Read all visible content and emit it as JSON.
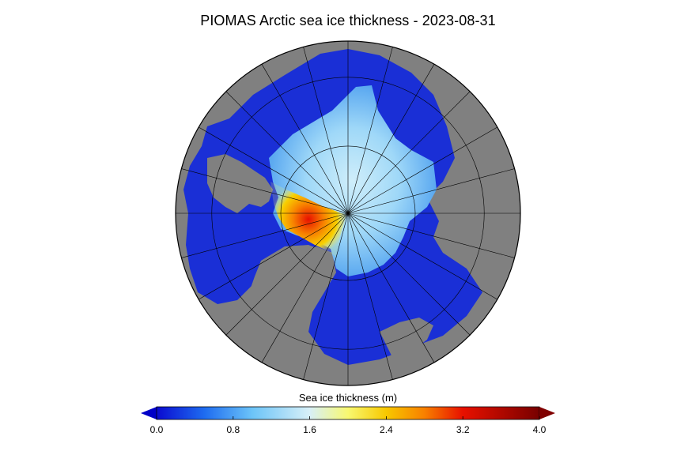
{
  "title": "PIOMAS Arctic sea ice thickness - 2023-08-31",
  "map": {
    "projection": "north-polar stereographic",
    "colors": {
      "land": "#808080",
      "ocean_open": "#1a2fd6",
      "graticule": "#000000"
    }
  },
  "colorbar": {
    "label": "Sea ice thickness (m)",
    "min": 0.0,
    "max": 4.0,
    "extend": "both",
    "ticks": [
      "0.0",
      "0.8",
      "1.6",
      "2.4",
      "3.2",
      "4.0"
    ],
    "tick_values": [
      0.0,
      0.8,
      1.6,
      2.4,
      3.2,
      4.0
    ],
    "stops": [
      {
        "value": 0.0,
        "color": "#0a0ad0"
      },
      {
        "value": 0.5,
        "color": "#1e6cf0"
      },
      {
        "value": 1.0,
        "color": "#6cc4f8"
      },
      {
        "value": 1.6,
        "color": "#d8f0f8"
      },
      {
        "value": 2.0,
        "color": "#f8f870"
      },
      {
        "value": 2.4,
        "color": "#f8c800"
      },
      {
        "value": 2.8,
        "color": "#f88000"
      },
      {
        "value": 3.2,
        "color": "#e81000"
      },
      {
        "value": 4.0,
        "color": "#780000"
      }
    ],
    "under_color": "#0000c8",
    "over_color": "#800000"
  }
}
